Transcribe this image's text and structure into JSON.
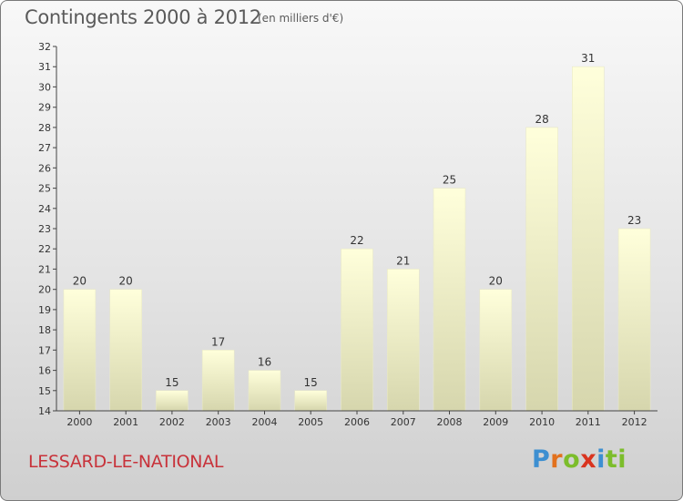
{
  "header": {
    "title": "Contingents 2000 à 2012",
    "subtitle": "(en milliers d'€)"
  },
  "footer": {
    "place": "LESSARD-LE-NATIONAL",
    "logo": [
      "P",
      "r",
      "o",
      "x",
      "i",
      "t",
      "i"
    ]
  },
  "colors": {
    "bar_top": "#ffffdb",
    "bar_bottom": "#d6d6ad",
    "place_text": "#c8323a"
  },
  "chart_data": {
    "type": "bar",
    "title": "Contingents 2000 à 2012",
    "subtitle": "(en milliers d'€)",
    "categories": [
      "2000",
      "2001",
      "2002",
      "2003",
      "2004",
      "2005",
      "2006",
      "2007",
      "2008",
      "2009",
      "2010",
      "2011",
      "2012"
    ],
    "values": [
      20,
      20,
      15,
      17,
      16,
      15,
      22,
      21,
      25,
      20,
      28,
      31,
      23
    ],
    "ylim": [
      14,
      32
    ],
    "yticks": [
      14,
      15,
      16,
      17,
      18,
      19,
      20,
      21,
      22,
      23,
      24,
      25,
      26,
      27,
      28,
      29,
      30,
      31,
      32
    ],
    "grid": false,
    "data_labels": true
  }
}
